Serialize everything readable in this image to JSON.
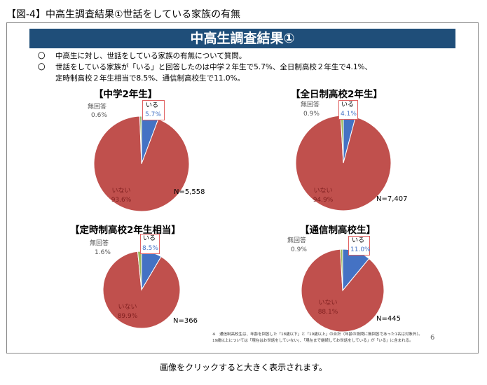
{
  "caption_title": "【図-4】中高生調査結果①世話をしている家族の有無",
  "banner": "中高生調査結果①",
  "bullets": [
    {
      "mark": "〇",
      "text": "中高生に対し、世話をしている家族の有無について質問。"
    },
    {
      "mark": "〇",
      "text": "世話をしている家族が「いる」と回答したのは中学２年生で5.7%、全日制高校２年生で4.1%、",
      "text2": "定時制高校２年生相当で8.5%、通信制高校生で11.0%。"
    }
  ],
  "colors": {
    "iru": "#4472c4",
    "inai": "#c0504d",
    "mukaitou": "#9bbb59",
    "banner": "#1f4e79"
  },
  "chart_data": [
    {
      "type": "pie",
      "title": "【中学2年生】",
      "n": "N=5,558",
      "slices": [
        {
          "label": "いる",
          "value": 5.7,
          "text": "5.7%"
        },
        {
          "label": "いない",
          "value": 93.6,
          "text": "93.6%"
        },
        {
          "label": "無回答",
          "value": 0.6,
          "text": "0.6%"
        }
      ]
    },
    {
      "type": "pie",
      "title": "【全日制高校2年生】",
      "n": "N=7,407",
      "slices": [
        {
          "label": "いる",
          "value": 4.1,
          "text": "4.1%"
        },
        {
          "label": "いない",
          "value": 94.9,
          "text": "94.9%"
        },
        {
          "label": "無回答",
          "value": 0.9,
          "text": "0.9%"
        }
      ]
    },
    {
      "type": "pie",
      "title": "【定時制高校2年生相当】",
      "n": "N=366",
      "slices": [
        {
          "label": "いる",
          "value": 8.5,
          "text": "8.5%"
        },
        {
          "label": "いない",
          "value": 89.9,
          "text": "89.9%"
        },
        {
          "label": "無回答",
          "value": 1.6,
          "text": "1.6%"
        }
      ]
    },
    {
      "type": "pie",
      "title": "【通信制高校生】",
      "n": "N=445",
      "slices": [
        {
          "label": "いる",
          "value": 11.0,
          "text": "11.0%"
        },
        {
          "label": "いない",
          "value": 88.1,
          "text": "88.1%"
        },
        {
          "label": "無回答",
          "value": 0.9,
          "text": "0.9%"
        }
      ]
    }
  ],
  "footnote": {
    "line1": "※　通信制高校生は、年齢を回答した「18歳以下」と「19歳以上」の合計（年齢の設問に無回答であった1名は対象外）。",
    "line2": "19歳以上については「現在はお世話をしていない」、「現在まで継続してお世話をしている」が「いる」に含まれる。"
  },
  "page_number": "6",
  "bottom_caption": "画像をクリックすると大きく表示されます。"
}
